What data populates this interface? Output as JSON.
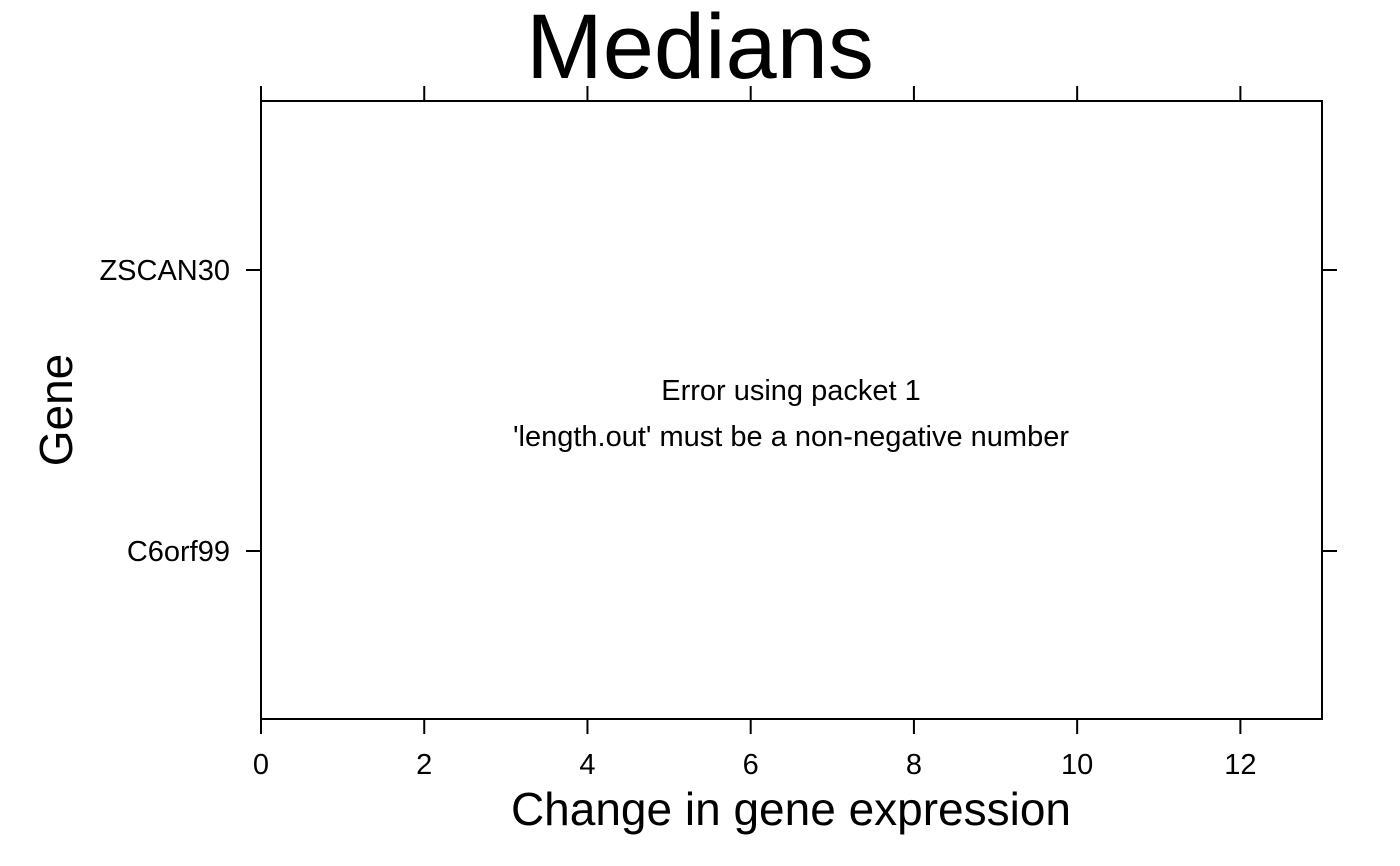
{
  "chart_data": {
    "type": "scatter",
    "title": "Medians",
    "xlabel": "Change in gene expression",
    "ylabel": "Gene",
    "xlim": [
      0,
      13
    ],
    "x_ticks": [
      0,
      2,
      4,
      6,
      8,
      10,
      12
    ],
    "categories": [
      "C6orf99",
      "ZSCAN30"
    ],
    "series": [],
    "grid": false,
    "legend": "none",
    "panel_message": [
      "Error using packet 1",
      "'length.out' must be a non-negative number"
    ]
  }
}
